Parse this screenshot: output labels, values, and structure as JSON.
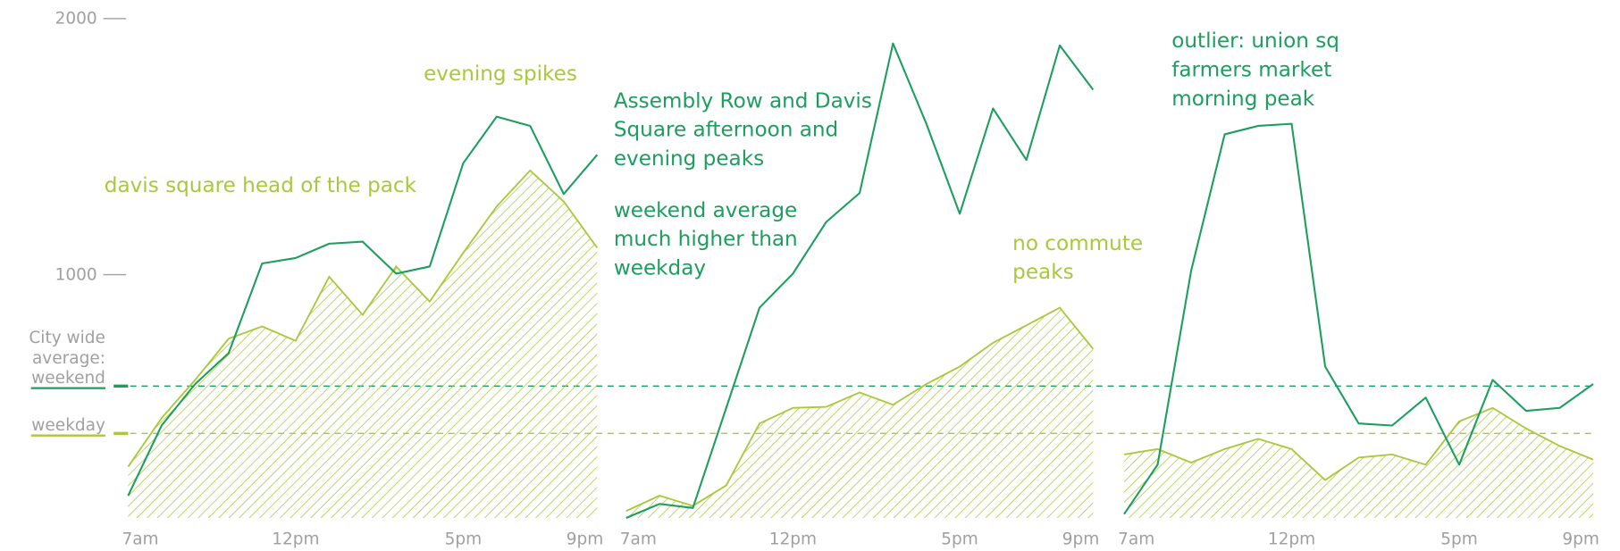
{
  "chart_data": {
    "type": "area-line",
    "ylim": [
      50,
      2000
    ],
    "yticks": [
      1000,
      2000
    ],
    "xlim": [
      7,
      21
    ],
    "colors": {
      "weekend": "#1c9e5e",
      "weekday": "#a9c83c"
    },
    "reference": {
      "title": [
        "City wide",
        "average:"
      ],
      "lines": [
        {
          "name": "weekend",
          "value": 565,
          "color": "#1c9e5e"
        },
        {
          "name": "weekday",
          "value": 380,
          "color": "#a9c83c"
        }
      ]
    },
    "panels": [
      {
        "x": [
          7,
          8,
          9,
          10,
          11,
          12,
          13,
          14,
          15,
          16,
          17,
          18,
          19,
          20,
          21
        ],
        "xticks": [
          {
            "value": 7,
            "label": "7am"
          },
          {
            "value": 12,
            "label": "12pm"
          },
          {
            "value": 17,
            "label": "5pm"
          },
          {
            "value": 21,
            "label": "9pm"
          }
        ],
        "series": [
          {
            "values": [
              250,
              440,
              589,
              750,
              798,
              742,
              992,
              843,
              1032,
              895,
              1085,
              1266,
              1407,
              1286,
              1105
            ],
            "color": "#a9c83c"
          },
          {
            "values": [
              137,
              411,
              573,
              694,
              1044,
              1065,
              1121,
              1129,
              1004,
              1032,
              1435,
              1617,
              1581,
              1315,
              1468
            ],
            "color": "#1c9e5e"
          }
        ],
        "annotations": [
          {
            "lines": [
              "davis square head of the pack"
            ],
            "color": "#a9c83c"
          },
          {
            "lines": [
              "evening spikes"
            ],
            "color": "#a9c83c"
          }
        ]
      },
      {
        "x": [
          7,
          8,
          9,
          10,
          11,
          12,
          13,
          14,
          15,
          16,
          17,
          18,
          19,
          20,
          21
        ],
        "xticks": [
          {
            "value": 7,
            "label": "7am"
          },
          {
            "value": 12,
            "label": "12pm"
          },
          {
            "value": 17,
            "label": "5pm"
          },
          {
            "value": 21,
            "label": "9pm"
          }
        ],
        "series": [
          {
            "values": [
              77,
              137,
              97,
              177,
              419,
              480,
              484,
              540,
              492,
              573,
              641,
              734,
              802,
              871,
              710
            ],
            "color": "#a9c83c"
          },
          {
            "values": [
              50,
              105,
              89,
              480,
              871,
              1004,
              1206,
              1319,
              1903,
              1589,
              1238,
              1649,
              1448,
              1895,
              1722
            ],
            "color": "#1c9e5e"
          }
        ],
        "annotations": [
          {
            "lines": [
              "Assembly Row and Davis",
              "Square afternoon and",
              "evening peaks"
            ],
            "color": "#1c9e5e"
          },
          {
            "lines": [
              "weekend average",
              "much higher than",
              "weekday"
            ],
            "color": "#1c9e5e"
          },
          {
            "lines": [
              "no commute",
              "peaks"
            ],
            "color": "#a9c83c"
          }
        ]
      },
      {
        "x": [
          7,
          8,
          9,
          10,
          11,
          12,
          13,
          14,
          15,
          16,
          17,
          18,
          19,
          20,
          21
        ],
        "xticks": [
          {
            "value": 7,
            "label": "7am"
          },
          {
            "value": 12,
            "label": "12pm"
          },
          {
            "value": 17,
            "label": "5pm"
          },
          {
            "value": 21,
            "label": "9pm"
          }
        ],
        "series": [
          {
            "values": [
              298,
              319,
              266,
              319,
              359,
              319,
              198,
              286,
              298,
              258,
              427,
              480,
              399,
              331,
              278
            ],
            "color": "#a9c83c"
          },
          {
            "values": [
              65,
              258,
              1016,
              1548,
              1581,
              1589,
              641,
              419,
              411,
              520,
              258,
              589,
              468,
              480,
              573
            ],
            "color": "#1c9e5e"
          }
        ],
        "annotations": [
          {
            "lines": [
              "outlier: union sq",
              "farmers market",
              "morning peak"
            ],
            "color": "#1c9e5e"
          }
        ]
      }
    ]
  }
}
